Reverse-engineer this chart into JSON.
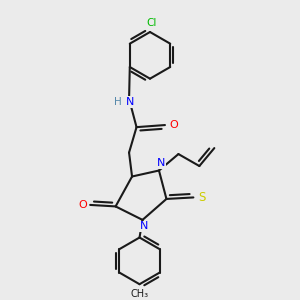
{
  "bg_color": "#ebebeb",
  "bond_color": "#1a1a1a",
  "N_color": "#0000ff",
  "O_color": "#ff0000",
  "S_color": "#cccc00",
  "Cl_color": "#00bb00",
  "H_color": "#5588aa",
  "line_width": 1.5,
  "figsize": [
    3.0,
    3.0
  ],
  "dpi": 100,
  "xlim": [
    0,
    10
  ],
  "ylim": [
    0,
    10
  ]
}
